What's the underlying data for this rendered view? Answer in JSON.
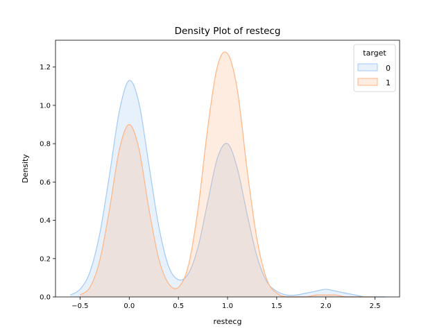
{
  "chart_data": {
    "type": "area",
    "title": "Density Plot of restecg",
    "xlabel": "restecg",
    "ylabel": "Density",
    "xlim": [
      -0.75,
      2.75
    ],
    "ylim": [
      0,
      1.34
    ],
    "xticks": [
      -0.5,
      0.0,
      0.5,
      1.0,
      1.5,
      2.0,
      2.5
    ],
    "yticks": [
      0.0,
      0.2,
      0.4,
      0.6,
      0.8,
      1.0,
      1.2
    ],
    "xtick_labels": [
      "−0.5",
      "0.0",
      "0.5",
      "1.0",
      "1.5",
      "2.0",
      "2.5"
    ],
    "ytick_labels": [
      "0.0",
      "0.2",
      "0.4",
      "0.6",
      "0.8",
      "1.0",
      "1.2"
    ],
    "grid": false,
    "legend": {
      "title": "target",
      "placement": "top-right"
    },
    "series": [
      {
        "name": "0",
        "color": "#a1c9f4",
        "x": [
          -0.6,
          -0.5,
          -0.4,
          -0.3,
          -0.2,
          -0.1,
          0.0,
          0.1,
          0.2,
          0.3,
          0.4,
          0.5,
          0.6,
          0.7,
          0.8,
          0.9,
          1.0,
          1.1,
          1.2,
          1.3,
          1.4,
          1.5,
          1.6,
          1.7,
          1.8,
          1.9,
          2.0,
          2.1,
          2.2,
          2.3,
          2.4,
          2.5,
          2.6
        ],
        "y": [
          0.01,
          0.04,
          0.13,
          0.33,
          0.64,
          0.97,
          1.13,
          1.01,
          0.69,
          0.37,
          0.16,
          0.09,
          0.12,
          0.26,
          0.5,
          0.73,
          0.8,
          0.67,
          0.43,
          0.21,
          0.08,
          0.03,
          0.01,
          0.01,
          0.02,
          0.03,
          0.04,
          0.03,
          0.02,
          0.01,
          0.0,
          0.0,
          0.0
        ]
      },
      {
        "name": "1",
        "color": "#ffb482",
        "x": [
          -0.5,
          -0.4,
          -0.3,
          -0.2,
          -0.1,
          0.0,
          0.1,
          0.2,
          0.3,
          0.4,
          0.5,
          0.6,
          0.7,
          0.8,
          0.9,
          1.0,
          1.1,
          1.2,
          1.3,
          1.4,
          1.5,
          1.6,
          1.7,
          1.8,
          1.9,
          2.0,
          2.1,
          2.2,
          2.3,
          2.4,
          2.5
        ],
        "y": [
          0.01,
          0.05,
          0.19,
          0.46,
          0.77,
          0.9,
          0.77,
          0.46,
          0.2,
          0.07,
          0.05,
          0.16,
          0.46,
          0.89,
          1.21,
          1.27,
          1.08,
          0.66,
          0.3,
          0.09,
          0.02,
          0.0,
          0.0,
          0.0,
          0.01,
          0.01,
          0.01,
          0.0,
          0.0,
          0.0,
          0.0
        ]
      }
    ]
  }
}
